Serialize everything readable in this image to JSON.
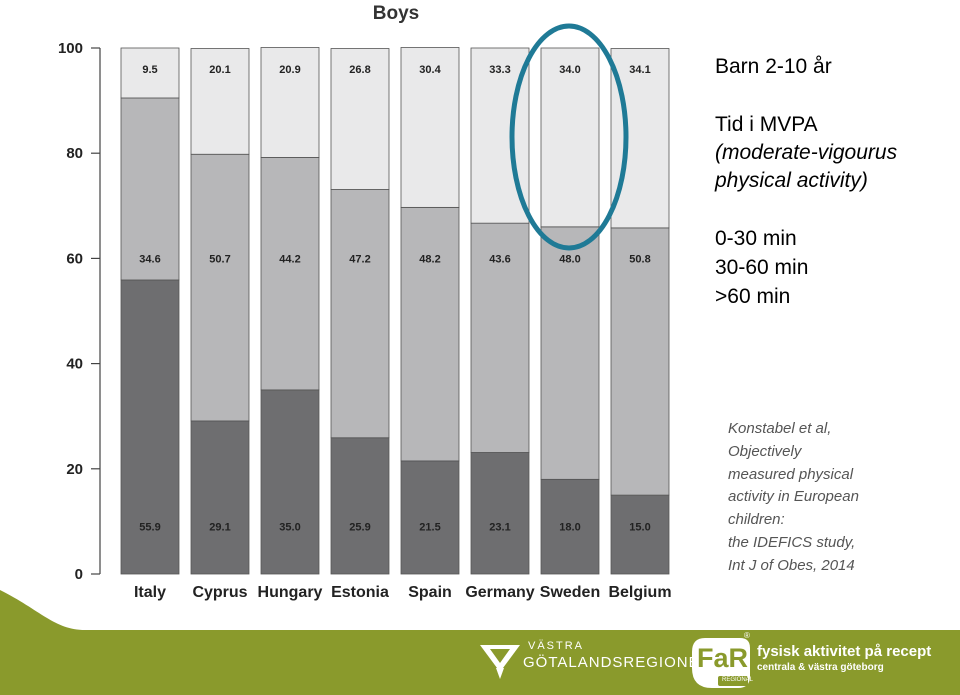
{
  "chart_data": {
    "type": "bar",
    "stacked": true,
    "title": "Boys",
    "categories": [
      "Italy",
      "Cyprus",
      "Hungary",
      "Estonia",
      "Spain",
      "Germany",
      "Sweden",
      "Belgium"
    ],
    "series": [
      {
        "name": "0-30 min",
        "color": "#6e6e70",
        "values": [
          55.9,
          29.1,
          35.0,
          25.9,
          21.5,
          23.1,
          18.0,
          15.0
        ],
        "labels": [
          "55.9",
          "29.1",
          "35.0",
          "25.9",
          "21.5",
          "23.1",
          "18.0",
          "15.0"
        ]
      },
      {
        "name": "30-60 min",
        "color": "#b7b7b9",
        "values": [
          34.6,
          50.7,
          44.2,
          47.2,
          48.2,
          43.6,
          48.0,
          50.8
        ],
        "labels": [
          "34.6",
          "50.7",
          "44.2",
          "47.2",
          "48.2",
          "43.6",
          "48.0",
          "50.8"
        ]
      },
      {
        "name": ">60 min",
        "color": "#e9e9ea",
        "values": [
          9.5,
          20.1,
          20.9,
          26.8,
          30.4,
          33.3,
          34.0,
          34.1
        ],
        "labels": [
          "9.5",
          "20.1",
          "20.9",
          "26.8",
          "30.4",
          "33.3",
          "34.0",
          "34.1"
        ]
      }
    ],
    "ylim": [
      0,
      100
    ],
    "yticks": [
      0,
      20,
      40,
      60,
      80,
      100
    ],
    "ytick_labels": [
      "0",
      "20",
      "40",
      "60",
      "80",
      "100"
    ],
    "label_y": {
      "bottom": 9,
      "middle": 60,
      "top": 96
    },
    "highlight": {
      "category": "Sweden",
      "shape": "ellipse",
      "color": "#1f7a96"
    },
    "xlabel": "",
    "ylabel": "",
    "grid": false
  },
  "side_text": {
    "heading": "Barn 2-10 år",
    "measure": "Tid i MVPA",
    "measure_desc_1": "(moderate-vigourus",
    "measure_desc_2": "physical activity)",
    "legend": [
      "0-30 min",
      "30-60 min",
      ">60 min"
    ]
  },
  "reference": {
    "lines": [
      "Konstabel et al,",
      "Objectively",
      "measured physical",
      "activity in European",
      "children:",
      "the IDEFICS study,",
      "Int J of Obes, 2014"
    ]
  },
  "footer": {
    "background_color": "#8a9a2c",
    "vgr_line1": "VÄSTRA",
    "vgr_line2": "GÖTALANDSREGIONEN",
    "far_logo": "FaR",
    "far_registered": "®",
    "far_badge": "REGIONAL",
    "far_title": "fysisk aktivitet på recept",
    "far_subtitle": "centrala & västra göteborg"
  }
}
